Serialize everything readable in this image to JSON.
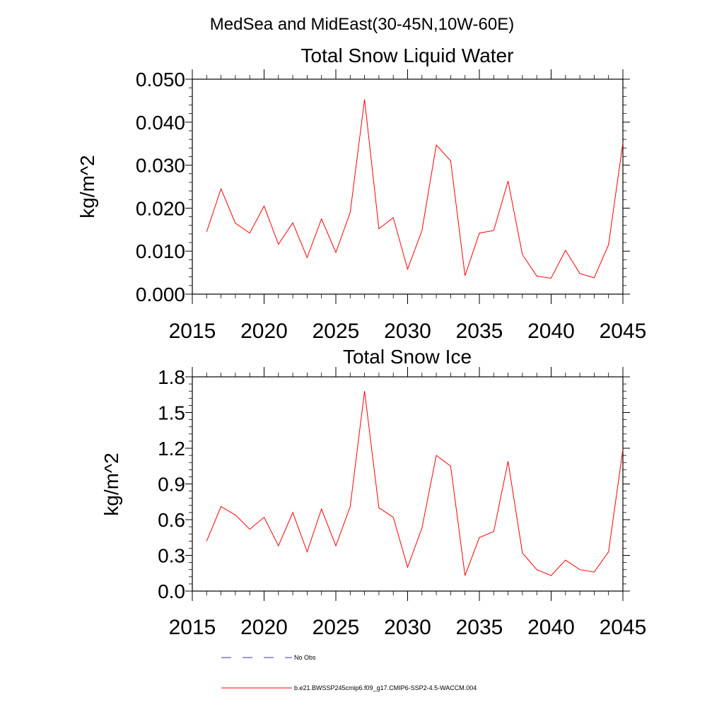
{
  "page": {
    "main_title": "MedSea and MidEast(30-45N,10W-60E)"
  },
  "chart_data": [
    {
      "type": "line",
      "title": "Total Snow Liquid Water",
      "xlabel": "",
      "ylabel": "kg/m^2",
      "xlim": [
        2015,
        2045
      ],
      "ylim": [
        0.0,
        0.05
      ],
      "xticks": [
        "2015",
        "2020",
        "2025",
        "2030",
        "2035",
        "2040",
        "2045"
      ],
      "yticks": [
        "0.000",
        "0.010",
        "0.020",
        "0.030",
        "0.040",
        "0.050"
      ],
      "grid": false,
      "series": [
        {
          "name": "b.e21.BWSSP245cmip6.f09_g17.CMIP6-SSP2-4.5-WACCM.004",
          "color": "#ff0000",
          "x": [
            2016,
            2017,
            2018,
            2019,
            2020,
            2021,
            2022,
            2023,
            2024,
            2025,
            2026,
            2027,
            2028,
            2029,
            2030,
            2031,
            2032,
            2033,
            2034,
            2035,
            2036,
            2037,
            2038,
            2039,
            2040,
            2041,
            2042,
            2043,
            2044,
            2045
          ],
          "values": [
            0.0145,
            0.0245,
            0.0165,
            0.0142,
            0.0205,
            0.0116,
            0.0166,
            0.0085,
            0.0175,
            0.0097,
            0.019,
            0.0453,
            0.0152,
            0.0178,
            0.0058,
            0.0148,
            0.0347,
            0.031,
            0.0043,
            0.0142,
            0.0148,
            0.0263,
            0.0092,
            0.0042,
            0.0037,
            0.0102,
            0.0048,
            0.0038,
            0.0115,
            0.0352
          ]
        }
      ]
    },
    {
      "type": "line",
      "title": "Total Snow Ice",
      "xlabel": "",
      "ylabel": "kg/m^2",
      "xlim": [
        2015,
        2045
      ],
      "ylim": [
        0.0,
        1.8
      ],
      "xticks": [
        "2015",
        "2020",
        "2025",
        "2030",
        "2035",
        "2040",
        "2045"
      ],
      "yticks": [
        "0.0",
        "0.3",
        "0.6",
        "0.9",
        "1.2",
        "1.5",
        "1.8"
      ],
      "grid": false,
      "series": [
        {
          "name": "b.e21.BWSSP245cmip6.f09_g17.CMIP6-SSP2-4.5-WACCM.004",
          "color": "#ff0000",
          "x": [
            2016,
            2017,
            2018,
            2019,
            2020,
            2021,
            2022,
            2023,
            2024,
            2025,
            2026,
            2027,
            2028,
            2029,
            2030,
            2031,
            2032,
            2033,
            2034,
            2035,
            2036,
            2037,
            2038,
            2039,
            2040,
            2041,
            2042,
            2043,
            2044,
            2045
          ],
          "values": [
            0.42,
            0.71,
            0.64,
            0.52,
            0.62,
            0.38,
            0.66,
            0.33,
            0.69,
            0.38,
            0.71,
            1.68,
            0.7,
            0.62,
            0.2,
            0.53,
            1.14,
            1.05,
            0.13,
            0.45,
            0.5,
            1.09,
            0.32,
            0.18,
            0.13,
            0.26,
            0.18,
            0.16,
            0.33,
            1.19
          ]
        }
      ]
    }
  ],
  "legend": [
    {
      "label": "No Obs",
      "color": "#3a3a9a",
      "dash": true
    },
    {
      "label": "b.e21.BWSSP245cmip6.f09_g17.CMIP6-SSP2-4.5-WACCM.004",
      "color": "#ff0000",
      "dash": false
    }
  ]
}
